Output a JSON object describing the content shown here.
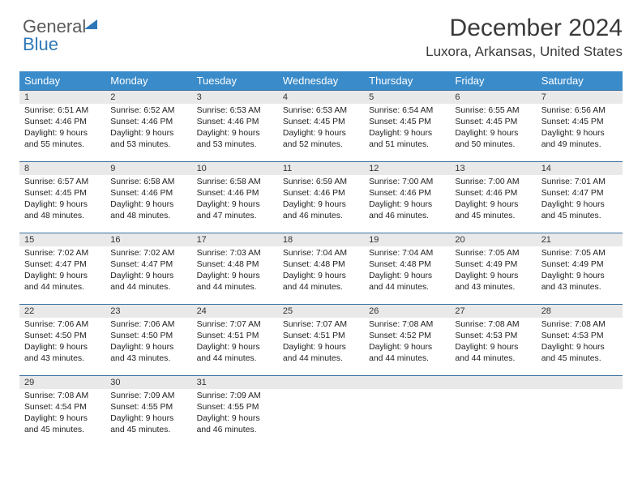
{
  "brand": {
    "part1": "General",
    "part2": "Blue"
  },
  "header": {
    "title": "December 2024",
    "location": "Luxora, Arkansas, United States"
  },
  "colors": {
    "header_bg": "#3a8bc9",
    "header_fg": "#ffffff",
    "daynum_bg": "#e9e9e9",
    "row_border": "#3a6fa0",
    "brand_gray": "#5a5a5a",
    "brand_blue": "#2f78b8"
  },
  "columns": [
    "Sunday",
    "Monday",
    "Tuesday",
    "Wednesday",
    "Thursday",
    "Friday",
    "Saturday"
  ],
  "days": [
    {
      "n": 1,
      "sr": "6:51 AM",
      "ss": "4:46 PM",
      "dl": "9 hours and 55 minutes."
    },
    {
      "n": 2,
      "sr": "6:52 AM",
      "ss": "4:46 PM",
      "dl": "9 hours and 53 minutes."
    },
    {
      "n": 3,
      "sr": "6:53 AM",
      "ss": "4:46 PM",
      "dl": "9 hours and 53 minutes."
    },
    {
      "n": 4,
      "sr": "6:53 AM",
      "ss": "4:45 PM",
      "dl": "9 hours and 52 minutes."
    },
    {
      "n": 5,
      "sr": "6:54 AM",
      "ss": "4:45 PM",
      "dl": "9 hours and 51 minutes."
    },
    {
      "n": 6,
      "sr": "6:55 AM",
      "ss": "4:45 PM",
      "dl": "9 hours and 50 minutes."
    },
    {
      "n": 7,
      "sr": "6:56 AM",
      "ss": "4:45 PM",
      "dl": "9 hours and 49 minutes."
    },
    {
      "n": 8,
      "sr": "6:57 AM",
      "ss": "4:45 PM",
      "dl": "9 hours and 48 minutes."
    },
    {
      "n": 9,
      "sr": "6:58 AM",
      "ss": "4:46 PM",
      "dl": "9 hours and 48 minutes."
    },
    {
      "n": 10,
      "sr": "6:58 AM",
      "ss": "4:46 PM",
      "dl": "9 hours and 47 minutes."
    },
    {
      "n": 11,
      "sr": "6:59 AM",
      "ss": "4:46 PM",
      "dl": "9 hours and 46 minutes."
    },
    {
      "n": 12,
      "sr": "7:00 AM",
      "ss": "4:46 PM",
      "dl": "9 hours and 46 minutes."
    },
    {
      "n": 13,
      "sr": "7:00 AM",
      "ss": "4:46 PM",
      "dl": "9 hours and 45 minutes."
    },
    {
      "n": 14,
      "sr": "7:01 AM",
      "ss": "4:47 PM",
      "dl": "9 hours and 45 minutes."
    },
    {
      "n": 15,
      "sr": "7:02 AM",
      "ss": "4:47 PM",
      "dl": "9 hours and 44 minutes."
    },
    {
      "n": 16,
      "sr": "7:02 AM",
      "ss": "4:47 PM",
      "dl": "9 hours and 44 minutes."
    },
    {
      "n": 17,
      "sr": "7:03 AM",
      "ss": "4:48 PM",
      "dl": "9 hours and 44 minutes."
    },
    {
      "n": 18,
      "sr": "7:04 AM",
      "ss": "4:48 PM",
      "dl": "9 hours and 44 minutes."
    },
    {
      "n": 19,
      "sr": "7:04 AM",
      "ss": "4:48 PM",
      "dl": "9 hours and 44 minutes."
    },
    {
      "n": 20,
      "sr": "7:05 AM",
      "ss": "4:49 PM",
      "dl": "9 hours and 43 minutes."
    },
    {
      "n": 21,
      "sr": "7:05 AM",
      "ss": "4:49 PM",
      "dl": "9 hours and 43 minutes."
    },
    {
      "n": 22,
      "sr": "7:06 AM",
      "ss": "4:50 PM",
      "dl": "9 hours and 43 minutes."
    },
    {
      "n": 23,
      "sr": "7:06 AM",
      "ss": "4:50 PM",
      "dl": "9 hours and 43 minutes."
    },
    {
      "n": 24,
      "sr": "7:07 AM",
      "ss": "4:51 PM",
      "dl": "9 hours and 44 minutes."
    },
    {
      "n": 25,
      "sr": "7:07 AM",
      "ss": "4:51 PM",
      "dl": "9 hours and 44 minutes."
    },
    {
      "n": 26,
      "sr": "7:08 AM",
      "ss": "4:52 PM",
      "dl": "9 hours and 44 minutes."
    },
    {
      "n": 27,
      "sr": "7:08 AM",
      "ss": "4:53 PM",
      "dl": "9 hours and 44 minutes."
    },
    {
      "n": 28,
      "sr": "7:08 AM",
      "ss": "4:53 PM",
      "dl": "9 hours and 45 minutes."
    },
    {
      "n": 29,
      "sr": "7:08 AM",
      "ss": "4:54 PM",
      "dl": "9 hours and 45 minutes."
    },
    {
      "n": 30,
      "sr": "7:09 AM",
      "ss": "4:55 PM",
      "dl": "9 hours and 45 minutes."
    },
    {
      "n": 31,
      "sr": "7:09 AM",
      "ss": "4:55 PM",
      "dl": "9 hours and 46 minutes."
    }
  ],
  "labels": {
    "sunrise": "Sunrise: ",
    "sunset": "Sunset: ",
    "daylight": "Daylight: "
  }
}
